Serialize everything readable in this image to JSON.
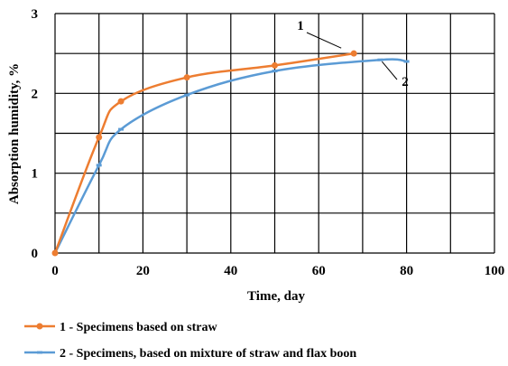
{
  "chart_data": {
    "type": "line",
    "xlabel": "Time, day",
    "ylabel": "Absorption humidity, %",
    "xlim": [
      0,
      100
    ],
    "ylim": [
      0,
      3
    ],
    "x_ticks": [
      "0",
      "20",
      "40",
      "60",
      "80",
      "100"
    ],
    "y_ticks": [
      "0",
      "1",
      "2",
      "3"
    ],
    "grid": true,
    "legend_position": "bottom",
    "series": [
      {
        "name": "1 - Specimens based on straw",
        "label": "1",
        "color": "#ED7D31",
        "marker": "circle",
        "x": [
          0,
          10,
          15,
          30,
          50,
          68
        ],
        "y": [
          0,
          1.45,
          1.9,
          2.2,
          2.35,
          2.5
        ]
      },
      {
        "name": "2 - Specimens, based on mixture of straw and flax boon",
        "label": "2",
        "color": "#5B9BD5",
        "marker": "dash",
        "x": [
          0,
          10,
          15,
          30,
          50,
          74,
          80
        ],
        "y": [
          0,
          1.1,
          1.55,
          1.98,
          2.28,
          2.42,
          2.4
        ]
      }
    ]
  }
}
